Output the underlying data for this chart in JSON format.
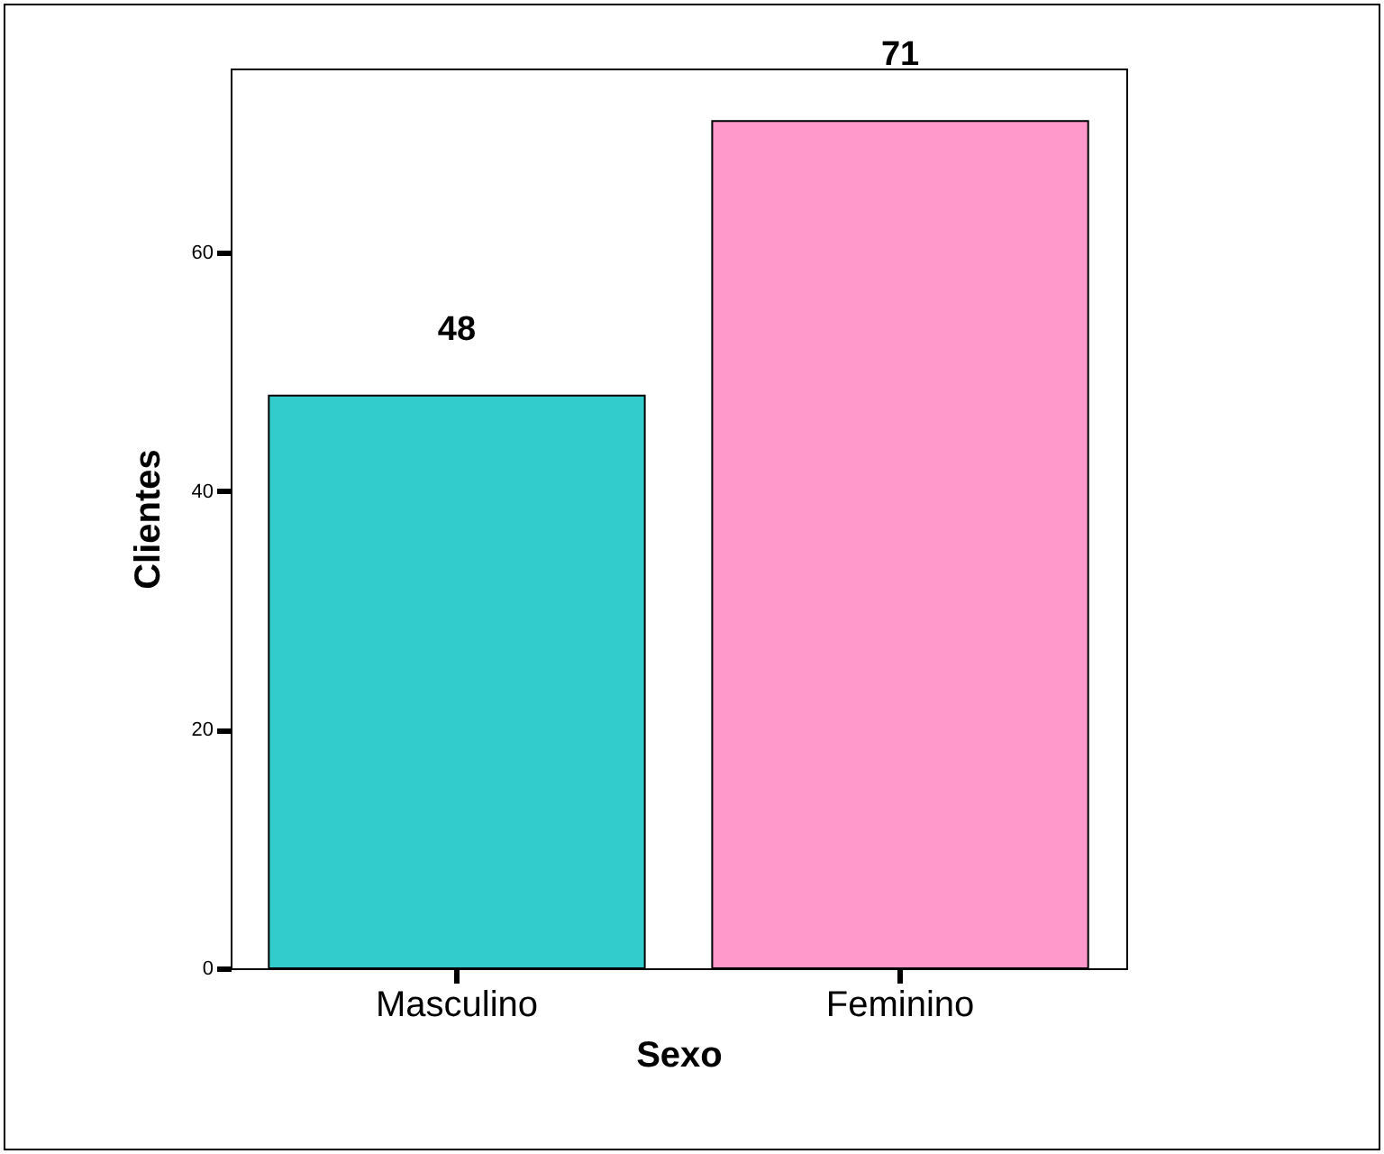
{
  "chart_data": {
    "type": "bar",
    "xlabel": "Sexo",
    "ylabel": "Clientes",
    "categories": [
      "Masculino",
      "Feminino"
    ],
    "values": [
      48,
      71
    ],
    "colors": [
      "#33cccc",
      "#ff99cc"
    ],
    "ylim": [
      0,
      75.4
    ],
    "yticks": [
      0,
      20,
      40,
      60
    ],
    "data_labels": true,
    "grid": false
  }
}
